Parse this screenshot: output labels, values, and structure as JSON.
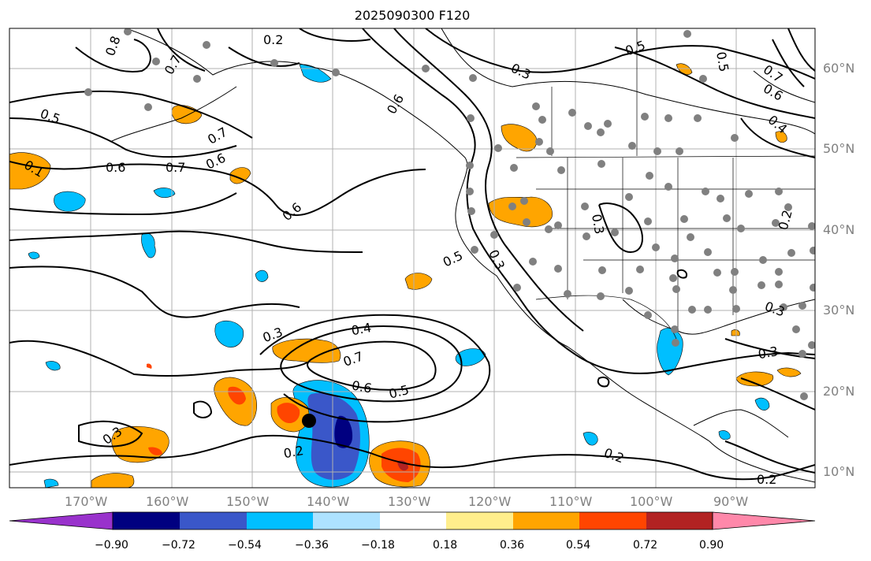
{
  "title": "2025090300 F120",
  "colors": {
    "purple": "#9932cc",
    "navy": "#000080",
    "royal": "#3a57c9",
    "deepsky": "#00bfff",
    "lightblue": "#ade2ff",
    "white": "#ffffff",
    "khaki": "#ffee8c",
    "orange": "#ffa500",
    "orangered": "#ff4500",
    "firebrick": "#b22222",
    "pink": "#ff88aa",
    "grid": "#b0b0b0",
    "station": "#808080"
  },
  "lat_labels": [
    "60°N",
    "50°N",
    "40°N",
    "30°N",
    "20°N",
    "10°N"
  ],
  "lon_labels": [
    "170°W",
    "160°W",
    "150°W",
    "140°W",
    "130°W",
    "120°W",
    "110°W",
    "100°W",
    "90°W"
  ],
  "contour_labels": [
    "0.2",
    "0.8",
    "0.7",
    "0.5",
    "0.7",
    "0.6",
    "0.6",
    "0.1",
    "0.7",
    "0.6",
    "0.6",
    "0.5",
    "0.3",
    "0.3",
    "0.4",
    "0.7",
    "0.6",
    "0.5",
    "0.3",
    "0.2",
    "0.5",
    "0.3",
    "0.5",
    "0.7",
    "0.6",
    "0.4",
    "0.3",
    "0.2",
    "0.3",
    "0.3",
    "0.2",
    "0.2"
  ],
  "colorbar": {
    "ticks": [
      "−0.90",
      "−0.72",
      "−0.54",
      "−0.36",
      "−0.18",
      "0.18",
      "0.36",
      "0.54",
      "0.72",
      "0.90"
    ],
    "colors": [
      "#9932cc",
      "#000080",
      "#3a57c9",
      "#00bfff",
      "#ade2ff",
      "#ffffff",
      "#ffee8c",
      "#ffa500",
      "#ff4500",
      "#b22222",
      "#ff88aa"
    ]
  }
}
